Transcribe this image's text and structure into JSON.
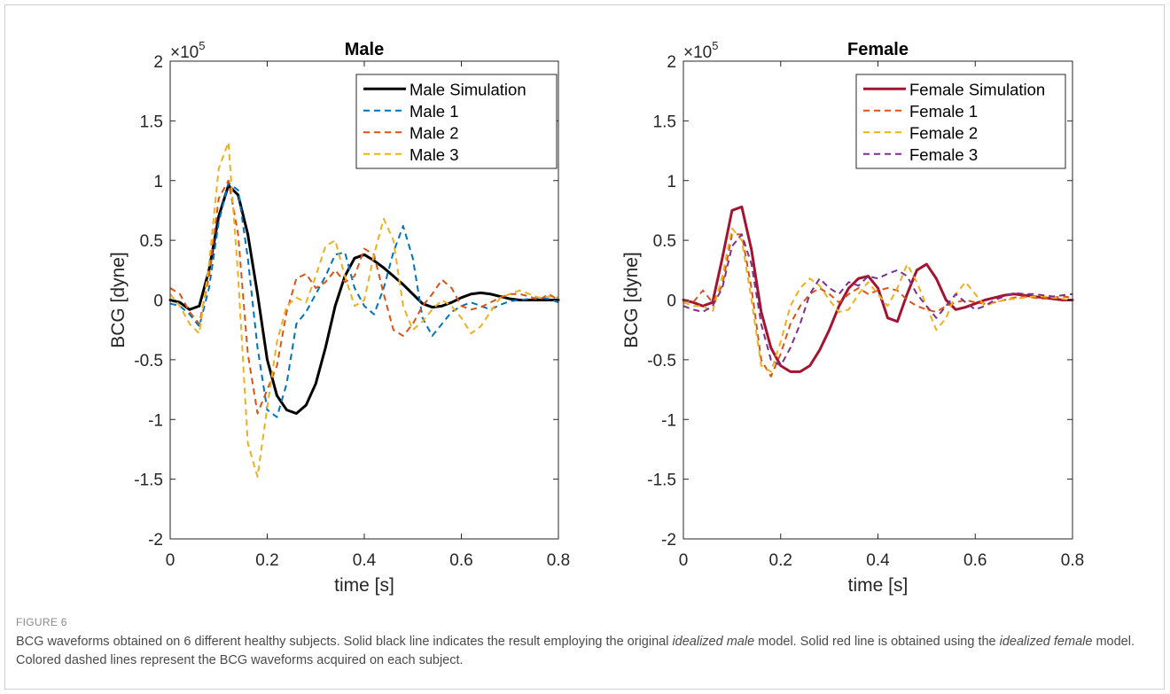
{
  "figure": {
    "label": "FIGURE 6",
    "caption_parts": [
      "BCG waveforms obtained on 6 different healthy subjects. Solid black line indicates the result employing the original ",
      "idealized male",
      " model. Solid red line is obtained using the ",
      "idealized female",
      " model. Colored dashed lines represent the BCG waveforms acquired on each subject."
    ]
  },
  "colors": {
    "black": "#000000",
    "maroon": "#A2142F",
    "blue": "#0072BD",
    "orange": "#D95319",
    "yellow": "#EDB120",
    "purple": "#7E2F8E"
  },
  "chart_data": [
    {
      "type": "line",
      "title": "Male",
      "xlabel": "time [s]",
      "ylabel": "BCG [dyne]",
      "exponent_label": "×10",
      "exponent": "5",
      "xlim": [
        0,
        0.8
      ],
      "ylim": [
        -2,
        2
      ],
      "xticks": [
        "0",
        "0.2",
        "0.4",
        "0.6",
        "0.8"
      ],
      "yticks": [
        "-2",
        "-1.5",
        "-1",
        "-0.5",
        "0",
        "0.5",
        "1",
        "1.5",
        "2"
      ],
      "legend_position": "top-right",
      "series": [
        {
          "name": "Male Simulation",
          "style": "solid",
          "color": "#000000",
          "x": [
            0,
            0.02,
            0.04,
            0.06,
            0.08,
            0.1,
            0.12,
            0.14,
            0.16,
            0.18,
            0.2,
            0.22,
            0.24,
            0.26,
            0.28,
            0.3,
            0.32,
            0.34,
            0.36,
            0.38,
            0.4,
            0.42,
            0.44,
            0.46,
            0.48,
            0.5,
            0.52,
            0.54,
            0.56,
            0.58,
            0.6,
            0.62,
            0.64,
            0.66,
            0.68,
            0.7,
            0.72,
            0.74,
            0.76,
            0.78,
            0.8
          ],
          "y": [
            0,
            -0.02,
            -0.08,
            -0.05,
            0.25,
            0.7,
            0.96,
            0.88,
            0.55,
            0.05,
            -0.5,
            -0.8,
            -0.92,
            -0.95,
            -0.88,
            -0.7,
            -0.4,
            -0.05,
            0.2,
            0.35,
            0.38,
            0.33,
            0.27,
            0.2,
            0.13,
            0.05,
            -0.03,
            -0.06,
            -0.05,
            -0.02,
            0.02,
            0.05,
            0.06,
            0.05,
            0.03,
            0.01,
            0.0,
            0.0,
            0.0,
            0.0,
            0.0
          ]
        },
        {
          "name": "Male 1",
          "style": "dashed",
          "color": "#0072BD",
          "x": [
            0,
            0.02,
            0.04,
            0.06,
            0.08,
            0.1,
            0.12,
            0.14,
            0.16,
            0.18,
            0.2,
            0.22,
            0.24,
            0.26,
            0.28,
            0.3,
            0.32,
            0.34,
            0.36,
            0.38,
            0.4,
            0.42,
            0.44,
            0.46,
            0.48,
            0.5,
            0.52,
            0.54,
            0.56,
            0.58,
            0.6,
            0.62,
            0.64,
            0.66,
            0.68,
            0.7,
            0.72,
            0.74,
            0.76,
            0.78,
            0.8
          ],
          "y": [
            -0.03,
            -0.05,
            -0.12,
            -0.22,
            0.1,
            0.65,
            0.98,
            0.92,
            0.35,
            -0.4,
            -0.92,
            -0.98,
            -0.7,
            -0.2,
            -0.1,
            0.05,
            0.2,
            0.38,
            0.4,
            0.1,
            -0.05,
            -0.12,
            0.1,
            0.4,
            0.62,
            0.35,
            -0.15,
            -0.3,
            -0.2,
            -0.1,
            -0.05,
            -0.02,
            -0.05,
            -0.08,
            -0.04,
            -0.01,
            0.0,
            0.01,
            0.02,
            0.01,
            -0.02
          ]
        },
        {
          "name": "Male 2",
          "style": "dashed",
          "color": "#D95319",
          "x": [
            0,
            0.02,
            0.04,
            0.06,
            0.08,
            0.1,
            0.12,
            0.14,
            0.16,
            0.18,
            0.2,
            0.22,
            0.24,
            0.26,
            0.28,
            0.3,
            0.32,
            0.34,
            0.36,
            0.38,
            0.4,
            0.42,
            0.44,
            0.46,
            0.48,
            0.5,
            0.52,
            0.54,
            0.56,
            0.58,
            0.6,
            0.62,
            0.64,
            0.66,
            0.68,
            0.7,
            0.72,
            0.74,
            0.76,
            0.78,
            0.8
          ],
          "y": [
            0.1,
            0.05,
            -0.1,
            -0.2,
            0.2,
            0.85,
            1.0,
            0.55,
            -0.45,
            -0.95,
            -0.75,
            -0.55,
            -0.1,
            0.18,
            0.22,
            0.1,
            0.15,
            0.25,
            0.15,
            0.2,
            0.43,
            0.38,
            0.05,
            -0.25,
            -0.3,
            -0.2,
            -0.05,
            0.05,
            0.17,
            0.1,
            -0.05,
            -0.08,
            -0.06,
            -0.02,
            0.02,
            0.05,
            0.05,
            0.03,
            0.0,
            0.05,
            0.0
          ]
        },
        {
          "name": "Male 3",
          "style": "dashed",
          "color": "#EDB120",
          "x": [
            0,
            0.02,
            0.04,
            0.06,
            0.08,
            0.1,
            0.12,
            0.14,
            0.16,
            0.18,
            0.2,
            0.22,
            0.24,
            0.26,
            0.28,
            0.3,
            0.32,
            0.34,
            0.36,
            0.38,
            0.4,
            0.42,
            0.44,
            0.46,
            0.48,
            0.5,
            0.52,
            0.54,
            0.56,
            0.58,
            0.6,
            0.62,
            0.64,
            0.66,
            0.68,
            0.7,
            0.72,
            0.74,
            0.76,
            0.78,
            0.8
          ],
          "y": [
            0.05,
            -0.05,
            -0.2,
            -0.28,
            0.3,
            1.1,
            1.32,
            0.2,
            -1.2,
            -1.48,
            -0.9,
            -0.35,
            -0.05,
            0.02,
            -0.02,
            0.2,
            0.45,
            0.5,
            0.2,
            -0.05,
            0.0,
            0.38,
            0.68,
            0.5,
            -0.05,
            -0.25,
            -0.18,
            -0.08,
            0.0,
            -0.05,
            -0.15,
            -0.28,
            -0.22,
            -0.1,
            0.02,
            0.05,
            0.08,
            0.05,
            0.02,
            0.03,
            0.02
          ]
        }
      ]
    },
    {
      "type": "line",
      "title": "Female",
      "xlabel": "time [s]",
      "ylabel": "BCG [dyne]",
      "exponent_label": "×10",
      "exponent": "5",
      "xlim": [
        0,
        0.8
      ],
      "ylim": [
        -2,
        2
      ],
      "xticks": [
        "0",
        "0.2",
        "0.4",
        "0.6",
        "0.8"
      ],
      "yticks": [
        "-2",
        "-1.5",
        "-1",
        "-0.5",
        "0",
        "0.5",
        "1",
        "1.5",
        "2"
      ],
      "legend_position": "top-right",
      "series": [
        {
          "name": "Female Simulation",
          "style": "solid",
          "color": "#A2142F",
          "x": [
            0,
            0.02,
            0.04,
            0.06,
            0.08,
            0.1,
            0.12,
            0.14,
            0.16,
            0.18,
            0.2,
            0.22,
            0.24,
            0.26,
            0.28,
            0.3,
            0.32,
            0.34,
            0.36,
            0.38,
            0.4,
            0.42,
            0.44,
            0.46,
            0.48,
            0.5,
            0.52,
            0.54,
            0.56,
            0.58,
            0.6,
            0.62,
            0.64,
            0.66,
            0.68,
            0.7,
            0.72,
            0.74,
            0.76,
            0.78,
            0.8
          ],
          "y": [
            0.0,
            -0.02,
            -0.05,
            -0.02,
            0.35,
            0.75,
            0.78,
            0.42,
            -0.1,
            -0.4,
            -0.55,
            -0.6,
            -0.6,
            -0.55,
            -0.42,
            -0.25,
            -0.05,
            0.1,
            0.18,
            0.2,
            0.1,
            -0.15,
            -0.18,
            0.05,
            0.25,
            0.3,
            0.18,
            0.0,
            -0.08,
            -0.06,
            -0.03,
            0.0,
            0.02,
            0.04,
            0.05,
            0.04,
            0.03,
            0.02,
            0.01,
            0.0,
            0.0
          ]
        },
        {
          "name": "Female 1",
          "style": "dashed",
          "color": "#D95319",
          "x": [
            0,
            0.02,
            0.04,
            0.06,
            0.08,
            0.1,
            0.12,
            0.14,
            0.16,
            0.18,
            0.2,
            0.22,
            0.24,
            0.26,
            0.28,
            0.3,
            0.32,
            0.34,
            0.36,
            0.38,
            0.4,
            0.42,
            0.44,
            0.46,
            0.48,
            0.5,
            0.52,
            0.54,
            0.56,
            0.58,
            0.6,
            0.62,
            0.64,
            0.66,
            0.68,
            0.7,
            0.72,
            0.74,
            0.76,
            0.78,
            0.8
          ],
          "y": [
            0.0,
            -0.02,
            0.08,
            -0.02,
            0.12,
            0.55,
            0.55,
            0.1,
            -0.5,
            -0.64,
            -0.45,
            -0.2,
            -0.05,
            0.05,
            0.1,
            0.05,
            -0.02,
            0.05,
            0.1,
            0.05,
            0.08,
            0.1,
            0.08,
            0.0,
            -0.05,
            -0.08,
            -0.1,
            -0.05,
            -0.02,
            0.0,
            -0.02,
            -0.03,
            -0.02,
            0.0,
            0.02,
            0.03,
            0.02,
            0.01,
            0.02,
            0.03,
            0.02
          ]
        },
        {
          "name": "Female 2",
          "style": "dashed",
          "color": "#EDB120",
          "x": [
            0,
            0.02,
            0.04,
            0.06,
            0.08,
            0.1,
            0.12,
            0.14,
            0.16,
            0.18,
            0.2,
            0.22,
            0.24,
            0.26,
            0.28,
            0.3,
            0.32,
            0.34,
            0.36,
            0.38,
            0.4,
            0.42,
            0.44,
            0.46,
            0.48,
            0.5,
            0.52,
            0.54,
            0.56,
            0.58,
            0.6,
            0.62,
            0.64,
            0.66,
            0.68,
            0.7,
            0.72,
            0.74,
            0.76,
            0.78,
            0.8
          ],
          "y": [
            -0.02,
            -0.05,
            -0.05,
            -0.1,
            0.2,
            0.6,
            0.5,
            0.0,
            -0.55,
            -0.6,
            -0.35,
            -0.05,
            0.1,
            0.18,
            0.12,
            0.0,
            -0.1,
            -0.08,
            0.05,
            0.15,
            0.05,
            -0.05,
            0.1,
            0.3,
            0.15,
            -0.05,
            -0.25,
            -0.15,
            0.05,
            0.15,
            0.05,
            -0.05,
            -0.02,
            0.0,
            0.01,
            0.02,
            0.03,
            0.03,
            0.02,
            0.01,
            0.0
          ]
        },
        {
          "name": "Female 3",
          "style": "dashed",
          "color": "#7E2F8E",
          "x": [
            0,
            0.02,
            0.04,
            0.06,
            0.08,
            0.1,
            0.12,
            0.14,
            0.16,
            0.18,
            0.2,
            0.22,
            0.24,
            0.26,
            0.28,
            0.3,
            0.32,
            0.34,
            0.36,
            0.38,
            0.4,
            0.42,
            0.44,
            0.46,
            0.48,
            0.5,
            0.52,
            0.54,
            0.56,
            0.58,
            0.6,
            0.62,
            0.64,
            0.66,
            0.68,
            0.7,
            0.72,
            0.74,
            0.76,
            0.78,
            0.8
          ],
          "y": [
            -0.05,
            -0.08,
            -0.1,
            -0.05,
            0.1,
            0.45,
            0.55,
            0.3,
            -0.2,
            -0.5,
            -0.55,
            -0.4,
            -0.2,
            0.05,
            0.18,
            0.1,
            0.05,
            0.15,
            0.12,
            0.2,
            0.18,
            0.22,
            0.25,
            0.2,
            0.05,
            -0.05,
            -0.15,
            -0.05,
            0.05,
            -0.02,
            -0.08,
            -0.05,
            0.0,
            0.03,
            0.06,
            0.05,
            0.05,
            0.04,
            0.03,
            0.04,
            0.05
          ]
        }
      ]
    }
  ]
}
